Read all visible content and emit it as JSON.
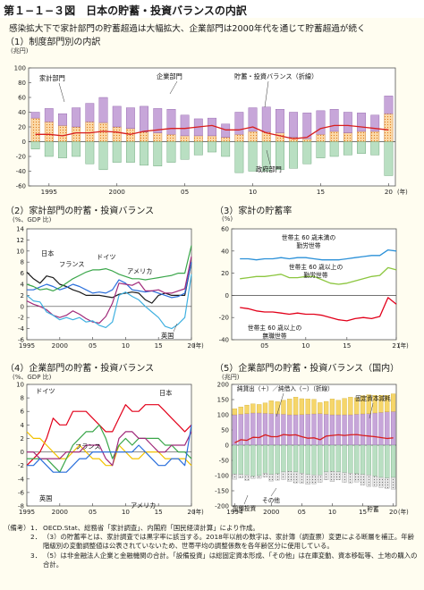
{
  "header": {
    "figure_title": "第１−１−３図　日本の貯蓄・投資バランスの内訳",
    "subtitle": "感染拡大下で家計部門の貯蓄超過は大幅拡大、企業部門は2000年代を通じて貯蓄超過が続く"
  },
  "chart_data": [
    {
      "id": "p1",
      "type": "bar",
      "panel_label": "（1）制度部門別の内訳",
      "unit": "(兆円)",
      "years": [
        1994,
        1995,
        1996,
        1997,
        1998,
        1999,
        2000,
        2001,
        2002,
        2003,
        2004,
        2005,
        2006,
        2007,
        2008,
        2009,
        2010,
        2011,
        2012,
        2013,
        2014,
        2015,
        2016,
        2017,
        2018,
        2019,
        2020
      ],
      "series": [
        {
          "name": "家計部門",
          "values": [
            32,
            27,
            22,
            20,
            27,
            26,
            20,
            18,
            13,
            12,
            10,
            8,
            8,
            8,
            6,
            10,
            14,
            13,
            12,
            6,
            4,
            10,
            14,
            12,
            14,
            14,
            38
          ]
        },
        {
          "name": "企業部門",
          "values": [
            8,
            18,
            16,
            26,
            25,
            34,
            28,
            28,
            35,
            33,
            34,
            28,
            23,
            24,
            18,
            30,
            32,
            34,
            32,
            34,
            35,
            32,
            30,
            28,
            25,
            22,
            24
          ]
        },
        {
          "name": "政府部門",
          "values": [
            -10,
            -20,
            -22,
            -20,
            -30,
            -38,
            -28,
            -28,
            -32,
            -33,
            -28,
            -24,
            -18,
            -14,
            -20,
            -42,
            -40,
            -40,
            -38,
            -36,
            -30,
            -22,
            -20,
            -18,
            -16,
            -18,
            -46
          ]
        },
        {
          "name": "貯蓄・投資バランス（折線）",
          "values": [
            10,
            10,
            8,
            12,
            12,
            14,
            13,
            10,
            14,
            16,
            18,
            18,
            20,
            22,
            16,
            16,
            20,
            12,
            8,
            4,
            6,
            18,
            22,
            22,
            20,
            18,
            16
          ]
        }
      ],
      "series_labels": {
        "household": "家計部門",
        "corporate": "企業部門",
        "balance": "貯蓄・投資バランス（折線）",
        "government": "政府部門"
      },
      "ylim": [
        -60,
        100
      ],
      "yticks": [
        -60,
        -40,
        -20,
        0,
        20,
        40,
        60,
        80,
        100
      ],
      "xtick_labels": [
        {
          "year": 1995,
          "label": "1995"
        },
        {
          "year": 2000,
          "label": "2000"
        },
        {
          "year": 2005,
          "label": "05"
        },
        {
          "year": 2010,
          "label": "10"
        },
        {
          "year": 2015,
          "label": "15"
        },
        {
          "year": 2020,
          "label": "20"
        }
      ],
      "x_unit": "(年)"
    },
    {
      "id": "p2",
      "type": "line",
      "panel_label": "（2）家計部門の貯蓄・投資バランス",
      "unit": "(%、GDP 比)",
      "years": [
        1995,
        1996,
        1997,
        1998,
        1999,
        2000,
        2001,
        2002,
        2003,
        2004,
        2005,
        2006,
        2007,
        2008,
        2009,
        2010,
        2011,
        2012,
        2013,
        2014,
        2015,
        2016,
        2017,
        2018,
        2019,
        2020
      ],
      "series": [
        {
          "name": "日本",
          "color": "#1a1a1a",
          "values": [
            6.2,
            5.0,
            4.2,
            5.5,
            5.2,
            4.0,
            3.6,
            3.0,
            2.6,
            2.0,
            2.0,
            2.0,
            1.8,
            1.6,
            2.2,
            2.4,
            2.6,
            2.4,
            1.2,
            0.6,
            2.0,
            2.4,
            2.0,
            2.0,
            2.0,
            8.0
          ]
        },
        {
          "name": "フランス",
          "color": "#2a6fdb",
          "values": [
            3.0,
            3.0,
            3.5,
            4.0,
            3.6,
            3.0,
            3.4,
            4.0,
            3.6,
            3.0,
            2.4,
            2.6,
            2.4,
            3.0,
            4.8,
            4.2,
            3.0,
            2.8,
            2.6,
            2.8,
            2.4,
            2.0,
            1.6,
            1.8,
            2.4,
            8.0
          ]
        },
        {
          "name": "ドイツ",
          "color": "#3aa64a",
          "values": [
            4.0,
            3.6,
            3.0,
            3.2,
            2.8,
            3.4,
            4.2,
            5.0,
            5.6,
            6.2,
            6.6,
            6.6,
            6.8,
            6.4,
            5.8,
            5.4,
            5.0,
            5.0,
            4.8,
            5.0,
            5.2,
            5.4,
            5.6,
            6.0,
            6.0,
            11.0
          ]
        },
        {
          "name": "アメリカ",
          "color": "#a02a7a",
          "values": [
            1.0,
            0.4,
            0.0,
            -0.6,
            -1.6,
            -2.0,
            -1.6,
            -0.8,
            -1.4,
            -2.2,
            -2.8,
            -3.0,
            -1.8,
            0.6,
            4.2,
            4.0,
            3.8,
            4.4,
            2.8,
            2.8,
            3.0,
            2.4,
            2.4,
            2.8,
            3.2,
            9.0
          ]
        },
        {
          "name": "英国",
          "color": "#3fb0e0",
          "values": [
            2.0,
            1.0,
            0.8,
            -1.0,
            -1.6,
            -2.4,
            -2.0,
            -2.4,
            -2.0,
            -2.8,
            -2.6,
            -3.4,
            -3.8,
            -2.8,
            2.0,
            2.6,
            1.8,
            1.2,
            0.0,
            -1.0,
            -2.0,
            -3.6,
            -4.0,
            -3.2,
            -2.0,
            5.8
          ]
        }
      ],
      "ylim": [
        -6,
        14
      ],
      "yticks": [
        -6,
        -4,
        -2,
        0,
        2,
        4,
        6,
        8,
        10,
        12,
        14
      ],
      "xtick_labels": [
        {
          "year": 1995,
          "label": "1995"
        },
        {
          "year": 2000,
          "label": "2000"
        },
        {
          "year": 2005,
          "label": "05"
        },
        {
          "year": 2010,
          "label": "10"
        },
        {
          "year": 2015,
          "label": "15"
        },
        {
          "year": 2020,
          "label": "20"
        }
      ],
      "x_unit": "(年)"
    },
    {
      "id": "p3",
      "type": "line",
      "panel_label": "（3）家計の貯蓄率",
      "unit": "(%)",
      "years": [
        2002,
        2003,
        2004,
        2005,
        2006,
        2007,
        2008,
        2009,
        2010,
        2011,
        2012,
        2013,
        2014,
        2015,
        2016,
        2017,
        2018,
        2019,
        2020,
        2021
      ],
      "series": [
        {
          "name": "世帯主60歳未満の勤労世帯",
          "color": "#2a90d8",
          "values": [
            33,
            33,
            32,
            33,
            33,
            34,
            33,
            34,
            34,
            33,
            32,
            32,
            32,
            33,
            34,
            35,
            36,
            36,
            41,
            40
          ]
        },
        {
          "name": "世帯主60歳以上の勤労世帯",
          "color": "#8cc63f",
          "values": [
            15,
            16,
            17,
            17,
            18,
            19,
            16,
            16,
            17,
            17,
            14,
            11,
            10,
            11,
            13,
            15,
            17,
            18,
            25,
            23
          ]
        },
        {
          "name": "世帯主60歳以上の無職世帯",
          "color": "#e2001a",
          "values": [
            -11,
            -12,
            -14,
            -15,
            -15,
            -16,
            -17,
            -16,
            -17,
            -17,
            -18,
            -20,
            -22,
            -23,
            -21,
            -20,
            -21,
            -19,
            -2,
            -8
          ]
        }
      ],
      "ylim": [
        -40,
        60
      ],
      "yticks": [
        -40,
        -20,
        0,
        20,
        40,
        60
      ],
      "xtick_labels": [
        {
          "year": 2005,
          "label": "05"
        },
        {
          "year": 2010,
          "label": "10"
        },
        {
          "year": 2015,
          "label": "15"
        },
        {
          "year": 2021,
          "label": "21"
        }
      ],
      "x_unit": "(年)",
      "label_lines": {
        "a": [
          "世帯主 60 歳未満の",
          "勤労世帯"
        ],
        "b": [
          "世帯主 60 歳以上の",
          "勤労世帯"
        ],
        "c": [
          "世帯主 60 歳以上の",
          "無職世帯"
        ]
      }
    },
    {
      "id": "p4",
      "type": "line",
      "panel_label": "（4）企業部門の貯蓄・投資バランス",
      "unit": "(%、GDP 比)",
      "years": [
        1995,
        1996,
        1997,
        1998,
        1999,
        2000,
        2001,
        2002,
        2003,
        2004,
        2005,
        2006,
        2007,
        2008,
        2009,
        2010,
        2011,
        2012,
        2013,
        2014,
        2015,
        2016,
        2017,
        2018,
        2019,
        2020
      ],
      "series": [
        {
          "name": "日本",
          "color": "#e2001a",
          "values": [
            -2,
            -1,
            0,
            2,
            5,
            4,
            4,
            6,
            6,
            6,
            5,
            4,
            3,
            3,
            5,
            7,
            6,
            6,
            7,
            7,
            7,
            6,
            5,
            4,
            3,
            4
          ]
        },
        {
          "name": "フランス",
          "color": "#f2c200",
          "values": [
            3,
            2,
            2,
            1,
            0,
            -1,
            -1,
            0,
            1,
            0,
            -1,
            -1,
            -2,
            -2,
            1,
            0,
            -1,
            -1,
            0,
            0,
            0,
            -1,
            -1,
            -1,
            -1,
            -2
          ]
        },
        {
          "name": "ドイツ",
          "color": "#3aa64a",
          "values": [
            -1,
            -1,
            -1,
            -1,
            -2,
            -3,
            -1,
            1,
            2,
            3,
            3,
            4,
            2,
            -1,
            1,
            2,
            1,
            2,
            2,
            2,
            2,
            1,
            1,
            0,
            0,
            -1
          ]
        },
        {
          "name": "アメリカ",
          "color": "#a02a7a",
          "values": [
            0,
            0,
            -1,
            -1,
            -1,
            -1,
            0,
            0,
            0,
            1,
            1,
            1,
            -1,
            -2,
            2,
            3,
            3,
            2,
            2,
            1,
            0,
            0,
            1,
            1,
            1,
            3
          ]
        },
        {
          "name": "英国",
          "color": "#2a6fdb",
          "values": [
            -2,
            -2,
            -1,
            -2,
            -3,
            -3,
            -3,
            -2,
            -1,
            -1,
            0,
            0,
            0,
            0,
            0,
            0,
            0,
            1,
            0,
            -1,
            -2,
            -2,
            -1,
            -1,
            -2,
            4
          ]
        }
      ],
      "ylim": [
        -8,
        10
      ],
      "yticks": [
        -8,
        -6,
        -4,
        -2,
        0,
        2,
        4,
        6,
        8,
        10
      ],
      "xtick_labels": [
        {
          "year": 1995,
          "label": "1995"
        },
        {
          "year": 2000,
          "label": "2000"
        },
        {
          "year": 2005,
          "label": "05"
        },
        {
          "year": 2010,
          "label": "10"
        },
        {
          "year": 2015,
          "label": "15"
        },
        {
          "year": 2020,
          "label": "20"
        }
      ],
      "x_unit": "(年)"
    },
    {
      "id": "p5",
      "type": "bar",
      "panel_label": "（5）企業部門の貯蓄・投資バランス（国内）",
      "unit": "(兆円)",
      "years": [
        1994,
        1995,
        1996,
        1997,
        1998,
        1999,
        2000,
        2001,
        2002,
        2003,
        2004,
        2005,
        2006,
        2007,
        2008,
        2009,
        2010,
        2011,
        2012,
        2013,
        2014,
        2015,
        2016,
        2017,
        2018,
        2019,
        2020
      ],
      "series": [
        {
          "name": "純貸出（＋）／純借入（−）（折線）",
          "values": [
            8,
            18,
            16,
            26,
            25,
            34,
            28,
            28,
            35,
            33,
            34,
            28,
            23,
            24,
            18,
            30,
            32,
            34,
            32,
            34,
            35,
            32,
            30,
            28,
            25,
            22,
            24
          ]
        },
        {
          "name": "固定資本減耗",
          "values": [
            100,
            102,
            104,
            106,
            106,
            105,
            104,
            103,
            102,
            100,
            100,
            101,
            102,
            103,
            104,
            102,
            100,
            100,
            100,
            100,
            102,
            103,
            104,
            106,
            108,
            110,
            111
          ]
        },
        {
          "name": "貯蓄",
          "values": [
            20,
            24,
            28,
            30,
            28,
            34,
            42,
            40,
            46,
            52,
            58,
            52,
            50,
            48,
            36,
            42,
            52,
            48,
            54,
            58,
            54,
            60,
            62,
            58,
            56,
            54,
            58
          ]
        },
        {
          "name": "設備投資",
          "values": [
            -95,
            -96,
            -98,
            -102,
            -100,
            -92,
            -96,
            -94,
            -88,
            -86,
            -88,
            -92,
            -96,
            -98,
            -98,
            -88,
            -86,
            -88,
            -90,
            -92,
            -94,
            -96,
            -98,
            -102,
            -106,
            -108,
            -106
          ]
        },
        {
          "name": "その他",
          "values": [
            -17,
            -12,
            -18,
            -8,
            -9,
            -13,
            -22,
            -21,
            -25,
            -33,
            -36,
            -33,
            -33,
            -29,
            -24,
            -26,
            -34,
            -26,
            -32,
            -32,
            -27,
            -35,
            -38,
            -34,
            -33,
            -34,
            -39
          ]
        }
      ],
      "series_labels": {
        "lending": "純貸出（＋）／純借入（−）（折線）",
        "depreciation": "固定資本減耗",
        "saving": "貯蓄",
        "capex": "設備投資",
        "other": "その他"
      },
      "ylim": [
        -200,
        200
      ],
      "yticks": [
        -200,
        -150,
        -100,
        -50,
        0,
        50,
        100,
        150,
        200
      ],
      "xtick_labels": [
        {
          "year": 1994,
          "label": "1994"
        },
        {
          "year": 2000,
          "label": "2000"
        },
        {
          "year": 2005,
          "label": "05"
        },
        {
          "year": 2010,
          "label": "10"
        },
        {
          "year": 2015,
          "label": "15"
        },
        {
          "year": 2020,
          "label": "20"
        }
      ],
      "x_unit": "(年)"
    }
  ],
  "notes": {
    "head": "（備考）",
    "items": [
      {
        "num": "1．",
        "text": "OECD.Stat、総務省「家計調査」、内閣府「国民経済計算」により作成。"
      },
      {
        "num": "2．",
        "text": "（3）の貯蓄率とは、家計調査では黒字率に該当する。2018年以前の数字は、家計簿（調査票）変更による断層を補正。年齢階級別の変動調整値は公表されていないため、世帯平均の調整係数を各年齢区分に使用している。"
      },
      {
        "num": "3．",
        "text": "（5）は非金融法人企業と金融機関の合計。「設備投資」は総固定資本形成、「その他」は在庫変動、資本移転等、土地の購入の合計。"
      }
    ]
  }
}
